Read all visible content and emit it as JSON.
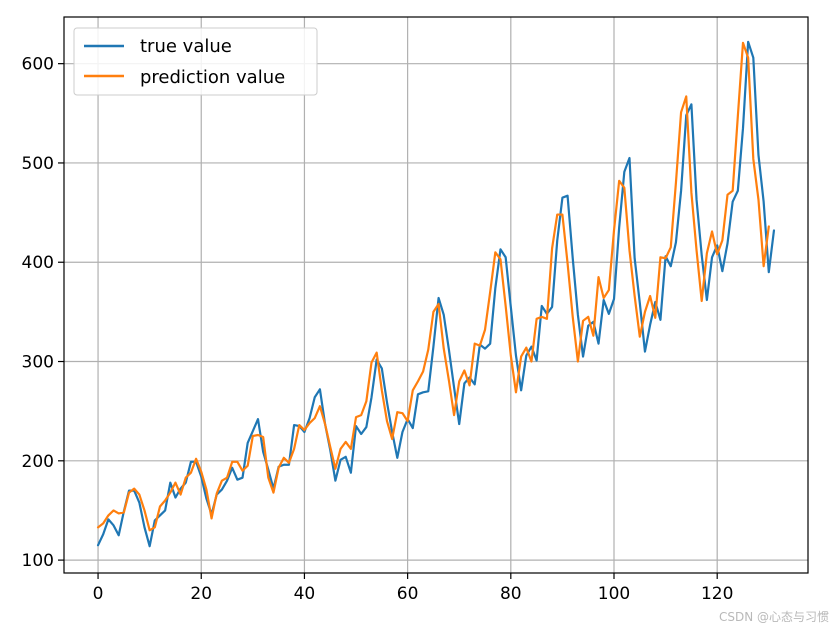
{
  "chart_data": {
    "type": "line",
    "title": "",
    "xlabel": "",
    "ylabel": "",
    "xlim": [
      -6.6,
      137.6
    ],
    "ylim": [
      87,
      647
    ],
    "xticks": [
      0,
      20,
      40,
      60,
      80,
      100,
      120
    ],
    "yticks": [
      100,
      200,
      300,
      400,
      500,
      600
    ],
    "grid": true,
    "legend_position": "top-left",
    "series": [
      {
        "name": "true value",
        "color": "#1f77b4",
        "values": [
          115,
          126,
          141,
          135,
          125,
          149,
          170,
          170,
          158,
          133,
          114,
          140,
          145,
          150,
          178,
          163,
          172,
          178,
          199,
          199,
          184,
          162,
          146,
          166,
          171,
          180,
          193,
          181,
          183,
          218,
          230,
          242,
          209,
          191,
          172,
          194,
          196,
          196,
          236,
          235,
          229,
          243,
          264,
          272,
          237,
          211,
          180,
          201,
          204,
          188,
          235,
          227,
          234,
          264,
          302,
          293,
          259,
          229,
          203,
          229,
          242,
          233,
          267,
          269,
          270,
          315,
          364,
          347,
          312,
          274,
          237,
          278,
          284,
          277,
          317,
          313,
          318,
          374,
          413,
          405,
          355,
          306,
          271,
          306,
          315,
          301,
          356,
          348,
          355,
          422,
          465,
          467,
          404,
          347,
          305,
          336,
          340,
          318,
          362,
          348,
          363,
          435,
          491,
          505,
          404,
          359,
          310,
          337,
          360,
          342,
          406,
          396,
          420,
          472,
          548,
          559,
          463,
          407,
          362,
          405,
          417,
          391,
          419,
          461,
          472,
          535,
          622,
          606,
          508,
          461,
          390,
          432
        ]
      },
      {
        "name": "prediction value",
        "color": "#ff7f0e",
        "values": [
          133,
          137,
          145,
          150,
          147,
          148,
          168,
          172,
          166,
          150,
          130,
          133,
          154,
          160,
          168,
          178,
          166,
          183,
          188,
          202,
          189,
          171,
          142,
          167,
          180,
          183,
          199,
          199,
          190,
          195,
          225,
          226,
          224,
          183,
          168,
          193,
          203,
          198,
          212,
          236,
          231,
          238,
          243,
          255,
          237,
          214,
          192,
          212,
          219,
          212,
          244,
          246,
          260,
          299,
          309,
          271,
          240,
          222,
          249,
          248,
          240,
          271,
          280,
          290,
          312,
          350,
          358,
          313,
          281,
          246,
          280,
          291,
          276,
          318,
          316,
          332,
          370,
          410,
          403,
          356,
          306,
          269,
          305,
          314,
          300,
          343,
          345,
          343,
          414,
          448,
          448,
          399,
          345,
          300,
          341,
          345,
          326,
          385,
          364,
          372,
          432,
          482,
          475,
          412,
          366,
          325,
          350,
          366,
          344,
          405,
          404,
          415,
          480,
          551,
          567,
          470,
          412,
          361,
          409,
          431,
          408,
          422,
          468,
          472,
          547,
          621,
          606,
          504,
          463,
          396,
          436
        ]
      }
    ]
  },
  "watermark_text": "CSDN @心态与习惯"
}
